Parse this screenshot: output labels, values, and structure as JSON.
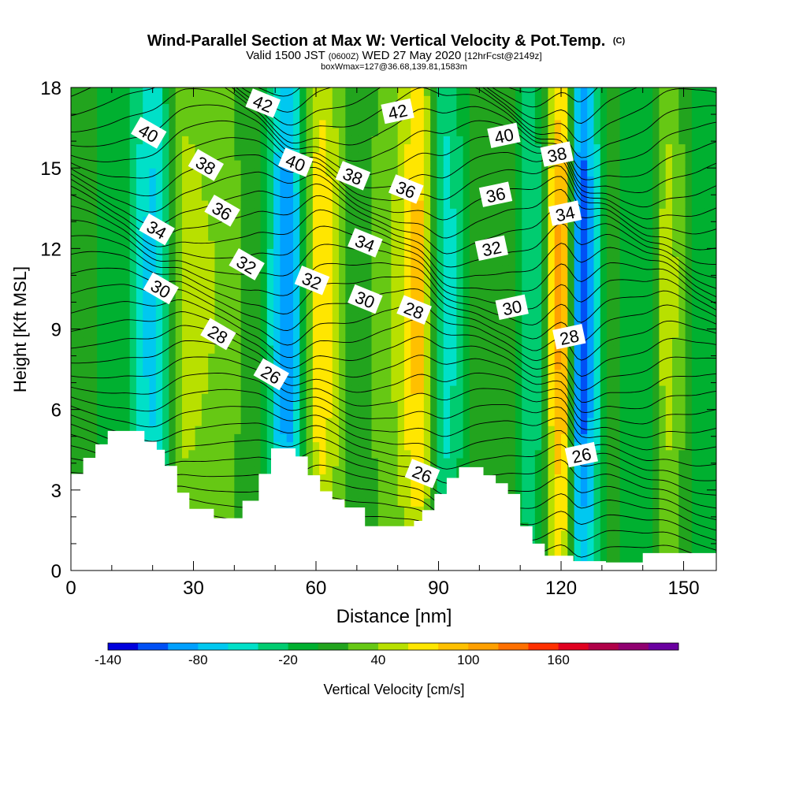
{
  "chart_data": {
    "type": "heatmap",
    "title": "Wind-Parallel Section at Max W: Vertical Velocity & Pot.Temp.",
    "title_mark": "(C)",
    "subtitle_parts": [
      "Valid 1500 JST ",
      "(0600Z)",
      " WED 27 May 2020 ",
      "[12hrFcst@2149z]"
    ],
    "subtitle2": "boxWmax=127@36.68,139.81,1583m",
    "xlabel": "Distance [nm]",
    "ylabel": "Height [Kft MSL]",
    "xlim": [
      0,
      158
    ],
    "ylim": [
      0,
      18
    ],
    "xticks": [
      0,
      30,
      60,
      90,
      120,
      150
    ],
    "yticks": [
      0,
      3,
      6,
      9,
      12,
      15,
      18
    ],
    "colorbar": {
      "label": "Vertical Velocity [cm/s]",
      "ticks": [
        -140,
        -80,
        -20,
        40,
        100,
        160
      ],
      "levels_min": -140,
      "levels_step": 20,
      "colors": [
        "#0000dd",
        "#0050f5",
        "#00a0ff",
        "#00c8f0",
        "#00e0c8",
        "#00cc70",
        "#00b030",
        "#22a41e",
        "#66c814",
        "#b8e000",
        "#ffe600",
        "#ffc000",
        "#ffa000",
        "#ff7000",
        "#ff3000",
        "#e00020",
        "#b00048",
        "#900070",
        "#6a00a0"
      ]
    },
    "vertical_velocity_columns": [
      {
        "x": 3,
        "w": 5
      },
      {
        "x": 12,
        "w": -10
      },
      {
        "x": 20,
        "w": -70
      },
      {
        "x": 28,
        "w": 50
      },
      {
        "x": 36,
        "w": 40
      },
      {
        "x": 45,
        "w": 10
      },
      {
        "x": 53,
        "w": -100
      },
      {
        "x": 61,
        "w": 80
      },
      {
        "x": 70,
        "w": 5
      },
      {
        "x": 78,
        "w": 40
      },
      {
        "x": 85,
        "w": 90
      },
      {
        "x": 92,
        "w": -50
      },
      {
        "x": 100,
        "w": 20
      },
      {
        "x": 106,
        "w": 15
      },
      {
        "x": 113,
        "w": -40
      },
      {
        "x": 120,
        "w": 110
      },
      {
        "x": 125,
        "w": -120
      },
      {
        "x": 132,
        "w": 5
      },
      {
        "x": 140,
        "w": -20
      },
      {
        "x": 146,
        "w": 50
      },
      {
        "x": 154,
        "w": -10
      }
    ],
    "theta_contour_labels": [
      {
        "text": "42",
        "x": 47,
        "y": 17.4
      },
      {
        "text": "42",
        "x": 80,
        "y": 17.1
      },
      {
        "text": "40",
        "x": 19,
        "y": 16.3
      },
      {
        "text": "40",
        "x": 55,
        "y": 15.2
      },
      {
        "text": "40",
        "x": 106,
        "y": 16.2
      },
      {
        "text": "38",
        "x": 33,
        "y": 15.1
      },
      {
        "text": "38",
        "x": 69,
        "y": 14.7
      },
      {
        "text": "38",
        "x": 119,
        "y": 15.5
      },
      {
        "text": "36",
        "x": 37,
        "y": 13.4
      },
      {
        "text": "36",
        "x": 82,
        "y": 14.2
      },
      {
        "text": "36",
        "x": 104,
        "y": 14.0
      },
      {
        "text": "34",
        "x": 21,
        "y": 12.7
      },
      {
        "text": "34",
        "x": 72,
        "y": 12.2
      },
      {
        "text": "34",
        "x": 121,
        "y": 13.3
      },
      {
        "text": "32",
        "x": 43,
        "y": 11.4
      },
      {
        "text": "32",
        "x": 59,
        "y": 10.8
      },
      {
        "text": "32",
        "x": 103,
        "y": 12.0
      },
      {
        "text": "30",
        "x": 22,
        "y": 10.5
      },
      {
        "text": "30",
        "x": 72,
        "y": 10.1
      },
      {
        "text": "30",
        "x": 108,
        "y": 9.8
      },
      {
        "text": "28",
        "x": 36,
        "y": 8.8
      },
      {
        "text": "28",
        "x": 84,
        "y": 9.7
      },
      {
        "text": "28",
        "x": 122,
        "y": 8.7
      },
      {
        "text": "26",
        "x": 49,
        "y": 7.3
      },
      {
        "text": "26",
        "x": 86,
        "y": 3.6
      },
      {
        "text": "26",
        "x": 125,
        "y": 4.3
      }
    ],
    "terrain": [
      [
        0,
        3.6
      ],
      [
        3,
        4.2
      ],
      [
        6,
        4.7
      ],
      [
        9,
        5.2
      ],
      [
        12,
        5.2
      ],
      [
        15,
        5.2
      ],
      [
        18,
        4.8
      ],
      [
        21,
        4.5
      ],
      [
        23,
        3.9
      ],
      [
        26,
        2.9
      ],
      [
        29,
        2.3
      ],
      [
        35,
        1.95
      ],
      [
        42,
        2.6
      ],
      [
        46,
        3.6
      ],
      [
        49,
        4.55
      ],
      [
        52,
        4.55
      ],
      [
        55,
        4.25
      ],
      [
        58,
        3.55
      ],
      [
        61,
        2.95
      ],
      [
        64,
        2.65
      ],
      [
        67,
        2.35
      ],
      [
        72,
        1.65
      ],
      [
        84,
        1.85
      ],
      [
        86,
        2.25
      ],
      [
        89,
        2.85
      ],
      [
        92,
        3.45
      ],
      [
        95,
        3.85
      ],
      [
        101,
        3.55
      ],
      [
        104,
        3.25
      ],
      [
        107,
        2.85
      ],
      [
        110,
        1.65
      ],
      [
        113,
        1.0
      ],
      [
        116,
        0.55
      ],
      [
        120,
        0.55
      ],
      [
        123,
        0.35
      ],
      [
        131,
        0.3
      ],
      [
        140,
        0.65
      ],
      [
        158,
        0.65
      ]
    ]
  }
}
